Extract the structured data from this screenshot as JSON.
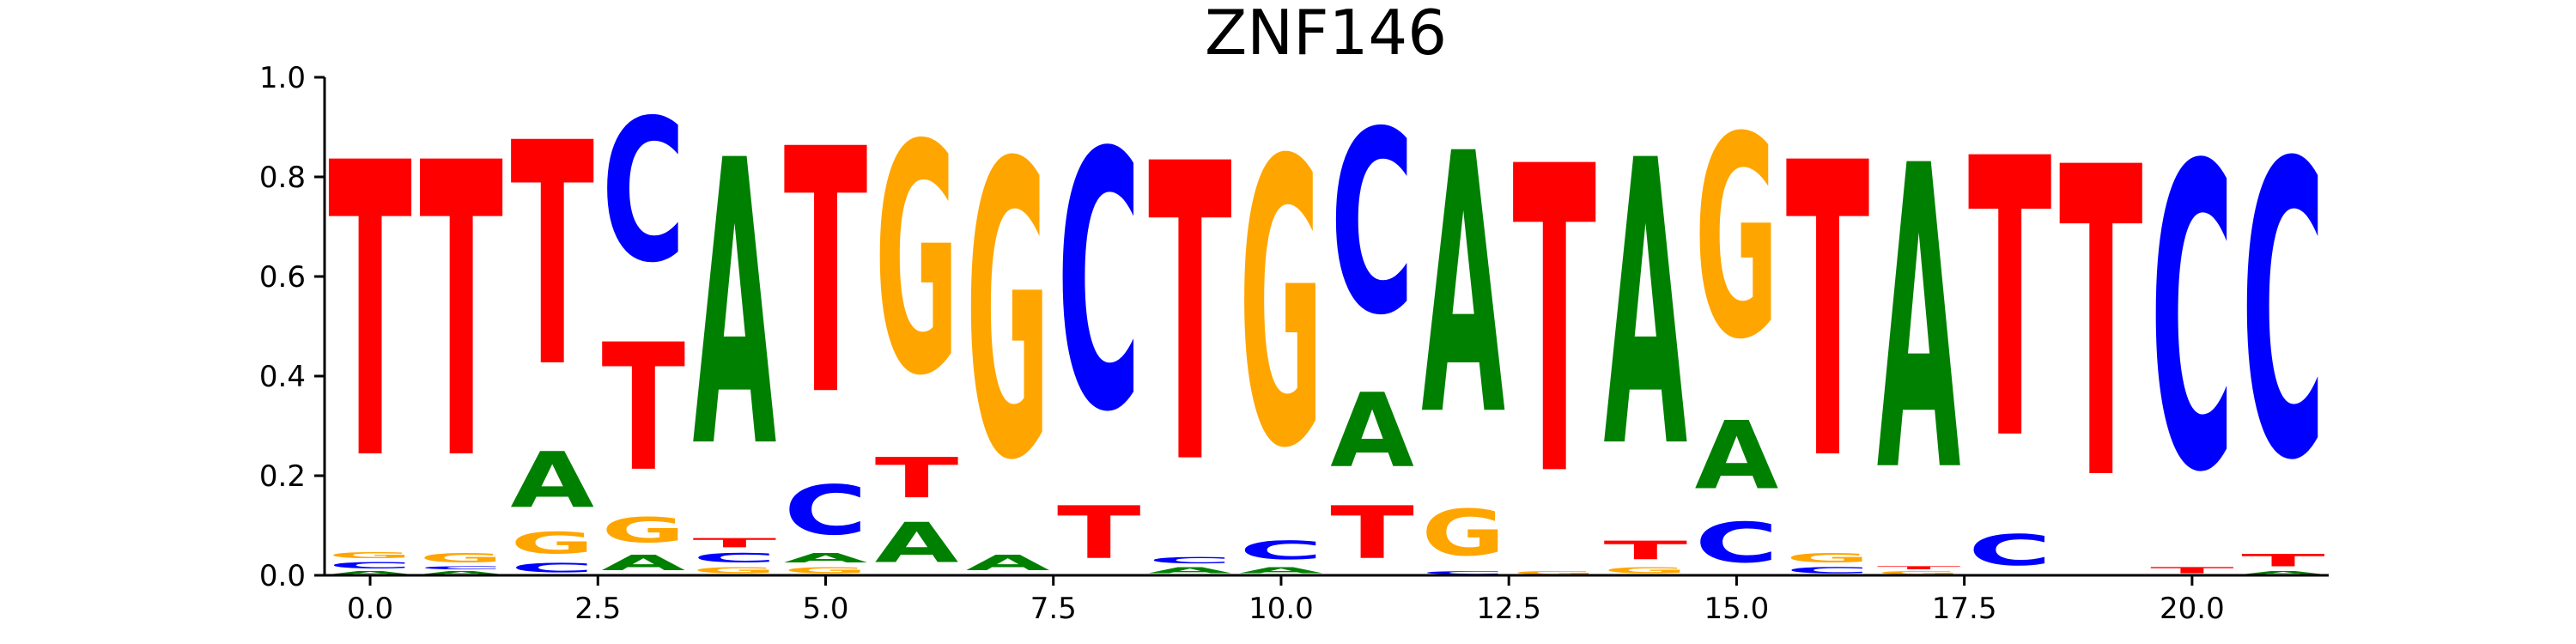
{
  "chart_data": {
    "type": "sequence_logo",
    "title": "ZNF146",
    "xlabel": "",
    "ylabel": "",
    "xlim": [
      -0.5,
      21.5
    ],
    "ylim": [
      0,
      1.0
    ],
    "xticks": [
      0.0,
      2.5,
      5.0,
      7.5,
      10.0,
      12.5,
      15.0,
      17.5,
      20.0
    ],
    "xtick_labels": [
      "0.0",
      "2.5",
      "5.0",
      "7.5",
      "10.0",
      "12.5",
      "15.0",
      "17.5",
      "20.0"
    ],
    "yticks": [
      0.0,
      0.2,
      0.4,
      0.6,
      0.8,
      1.0
    ],
    "ytick_labels": [
      "0.0",
      "0.2",
      "0.4",
      "0.6",
      "0.8",
      "1.0"
    ],
    "colors": {
      "A": "#008000",
      "C": "#0000ff",
      "G": "#ffa500",
      "T": "#ff0000"
    },
    "positions": [
      {
        "pos": 0,
        "letters": [
          {
            "base": "A",
            "value": 0.01
          },
          {
            "base": "C",
            "value": 0.02
          },
          {
            "base": "G",
            "value": 0.02
          },
          {
            "base": "T",
            "value": 0.95
          }
        ]
      },
      {
        "pos": 1,
        "letters": [
          {
            "base": "A",
            "value": 0.01
          },
          {
            "base": "C",
            "value": 0.01
          },
          {
            "base": "G",
            "value": 0.03
          },
          {
            "base": "T",
            "value": 0.95
          }
        ]
      },
      {
        "pos": 2,
        "letters": [
          {
            "base": "C",
            "value": 0.03
          },
          {
            "base": "G",
            "value": 0.07
          },
          {
            "base": "A",
            "value": 0.18
          },
          {
            "base": "T",
            "value": 0.72
          }
        ]
      },
      {
        "pos": 3,
        "letters": [
          {
            "base": "A",
            "value": 0.05
          },
          {
            "base": "G",
            "value": 0.08
          },
          {
            "base": "T",
            "value": 0.41
          },
          {
            "base": "C",
            "value": 0.46
          }
        ]
      },
      {
        "pos": 4,
        "letters": [
          {
            "base": "G",
            "value": 0.02
          },
          {
            "base": "C",
            "value": 0.03
          },
          {
            "base": "T",
            "value": 0.03
          },
          {
            "base": "A",
            "value": 0.92
          }
        ]
      },
      {
        "pos": 5,
        "letters": [
          {
            "base": "G",
            "value": 0.02
          },
          {
            "base": "A",
            "value": 0.03
          },
          {
            "base": "C",
            "value": 0.16
          },
          {
            "base": "T",
            "value": 0.79
          }
        ]
      },
      {
        "pos": 6,
        "letters": [
          {
            "base": "A",
            "value": 0.13
          },
          {
            "base": "T",
            "value": 0.13
          },
          {
            "base": "G",
            "value": 0.74
          }
        ]
      },
      {
        "pos": 7,
        "letters": [
          {
            "base": "A",
            "value": 0.05
          },
          {
            "base": "G",
            "value": 0.95
          }
        ]
      },
      {
        "pos": 8,
        "letters": [
          {
            "base": "T",
            "value": 0.17
          },
          {
            "base": "C",
            "value": 0.83
          }
        ]
      },
      {
        "pos": 9,
        "letters": [
          {
            "base": "A",
            "value": 0.02
          },
          {
            "base": "C",
            "value": 0.02
          },
          {
            "base": "T",
            "value": 0.96
          }
        ]
      },
      {
        "pos": 10,
        "letters": [
          {
            "base": "A",
            "value": 0.02
          },
          {
            "base": "C",
            "value": 0.06
          },
          {
            "base": "G",
            "value": 0.92
          }
        ]
      },
      {
        "pos": 11,
        "letters": [
          {
            "base": "T",
            "value": 0.17
          },
          {
            "base": "A",
            "value": 0.24
          },
          {
            "base": "C",
            "value": 0.59
          }
        ]
      },
      {
        "pos": 12,
        "letters": [
          {
            "base": "C",
            "value": 0.01
          },
          {
            "base": "G",
            "value": 0.15
          },
          {
            "base": "A",
            "value": 0.84
          }
        ]
      },
      {
        "pos": 13,
        "letters": [
          {
            "base": "G",
            "value": 0.01
          },
          {
            "base": "T",
            "value": 0.99
          }
        ]
      },
      {
        "pos": 14,
        "letters": [
          {
            "base": "G",
            "value": 0.02
          },
          {
            "base": "T",
            "value": 0.06
          },
          {
            "base": "A",
            "value": 0.92
          }
        ]
      },
      {
        "pos": 15,
        "letters": [
          {
            "base": "C",
            "value": 0.13
          },
          {
            "base": "A",
            "value": 0.22
          },
          {
            "base": "G",
            "value": 0.65
          }
        ]
      },
      {
        "pos": 16,
        "letters": [
          {
            "base": "C",
            "value": 0.02
          },
          {
            "base": "G",
            "value": 0.03
          },
          {
            "base": "T",
            "value": 0.95
          }
        ]
      },
      {
        "pos": 17,
        "letters": [
          {
            "base": "G",
            "value": 0.01
          },
          {
            "base": "T",
            "value": 0.01
          },
          {
            "base": "A",
            "value": 0.98
          }
        ]
      },
      {
        "pos": 18,
        "letters": [
          {
            "base": "C",
            "value": 0.1
          },
          {
            "base": "T",
            "value": 0.9
          }
        ]
      },
      {
        "pos": 19,
        "letters": [
          {
            "base": "T",
            "value": 1.0
          }
        ]
      },
      {
        "pos": 20,
        "letters": [
          {
            "base": "T",
            "value": 0.02
          },
          {
            "base": "C",
            "value": 0.98
          }
        ]
      },
      {
        "pos": 21,
        "letters": [
          {
            "base": "A",
            "value": 0.01
          },
          {
            "base": "T",
            "value": 0.04
          },
          {
            "base": "C",
            "value": 0.95
          }
        ]
      }
    ]
  }
}
